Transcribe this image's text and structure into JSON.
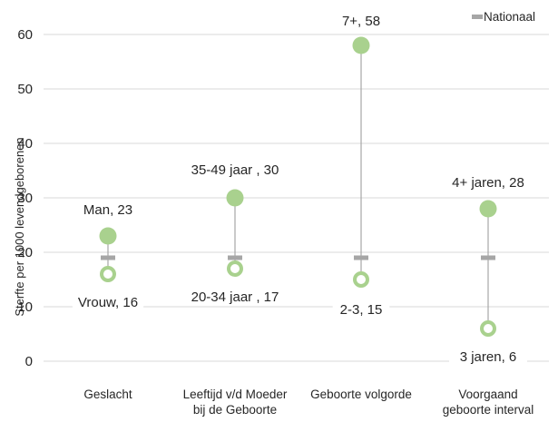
{
  "chart_data": {
    "type": "scatter",
    "title": "",
    "xlabel": "",
    "ylabel": "Sterfte per 1000 levendgeborenen",
    "ylim": [
      0,
      60
    ],
    "yticks": [
      0,
      10,
      20,
      30,
      40,
      50,
      60
    ],
    "grid": true,
    "legend": {
      "position": "top-right",
      "entries": [
        "Nationaal"
      ]
    },
    "colors": {
      "high": "#a9d18e",
      "low_ring": "#a9d18e",
      "nationaal": "#a6a6a6",
      "range_line": "#a6a6a6",
      "grid": "#d9d9d9"
    },
    "categories": [
      [
        "Geslacht"
      ],
      [
        "Leeftijd v/d Moeder",
        "bij de Geboorte"
      ],
      [
        "Geboorte volgorde"
      ],
      [
        "Voorgaand",
        "geboorte interval"
      ]
    ],
    "nationaal": [
      19,
      19,
      19,
      19
    ],
    "high": [
      {
        "label": "Man, 23",
        "value": 23
      },
      {
        "label": "35-49 jaar , 30",
        "value": 30
      },
      {
        "label": "7+, 58",
        "value": 58
      },
      {
        "label": "4+ jaren, 28",
        "value": 28
      }
    ],
    "low": [
      {
        "label": "Vrouw, 16",
        "value": 16
      },
      {
        "label": "20-34 jaar , 17",
        "value": 17
      },
      {
        "label": "2-3, 15",
        "value": 15
      },
      {
        "label": "3 jaren, 6",
        "value": 6
      }
    ]
  }
}
